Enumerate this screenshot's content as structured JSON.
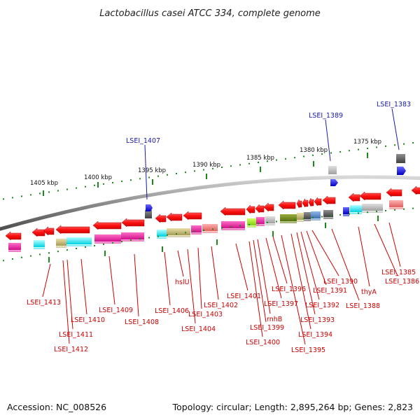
{
  "title": "Lactobacillus casei ATCC 334, complete genome",
  "footer": {
    "accession": "Accession: NC_008526",
    "summary": "Topology: circular; Length: 2,895,264 bp; Genes: 2,823"
  },
  "ticks": [
    "1405 kbp",
    "1400 kbp",
    "1395 kbp",
    "1390 kbp",
    "1385 kbp",
    "1380 kbp",
    "1375 kbp"
  ],
  "labels_top": [
    "LSEI_1407",
    "LSEI_1389",
    "LSEI_1383"
  ],
  "labels_bottom": [
    "LSEI_1413",
    "LSEI_1412",
    "LSEI_1411",
    "LSEI_1410",
    "LSEI_1409",
    "LSEI_1408",
    "LSEI_1406",
    "hslU",
    "LSEI_1404",
    "LSEI_1403",
    "LSEI_1402",
    "LSEI_1401",
    "LSEI_1400",
    "LSEI_1399",
    "rnhB",
    "LSEI_1397",
    "LSEI_1396",
    "LSEI_1395",
    "LSEI_1394",
    "LSEI_1393",
    "LSEI_1392",
    "LSEI_1391",
    "LSEI_1390",
    "LSEI_1388",
    "thyA",
    "LSEI_1386",
    "LSEI_1385"
  ],
  "colors": {
    "gene": "#ff0000",
    "blue_gene": "#1010ee",
    "tick": "#1a8a1a",
    "backbone": "#8a8a8a",
    "red_label": "#cc0000",
    "blue_label": "#1a1aaa"
  }
}
